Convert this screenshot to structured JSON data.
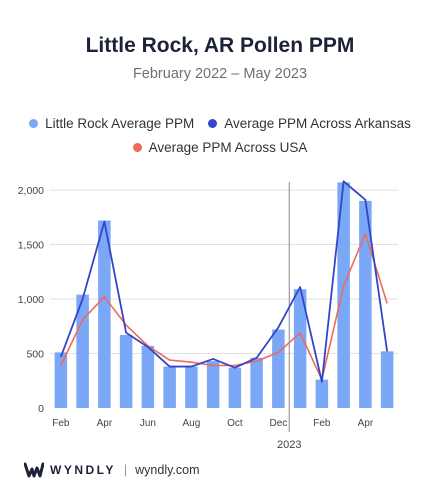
{
  "header": {
    "title": "Little Rock, AR Pollen PPM",
    "subtitle": "February 2022 – May 2023"
  },
  "legend": [
    {
      "label": "Little Rock Average PPM",
      "color": "#7aa8f7"
    },
    {
      "label": "Average PPM Across Arkansas",
      "color": "#3346c8"
    },
    {
      "label": "Average PPM Across USA",
      "color": "#ee6a5e"
    }
  ],
  "footer": {
    "brand": "WYNDLY",
    "separator": "|",
    "site": "wyndly.com",
    "logo_icon": "wyndly-w-icon"
  },
  "chart_data": {
    "type": "bar",
    "title": "Little Rock, AR Pollen PPM",
    "subtitle": "February 2022 – May 2023",
    "ylim": [
      0,
      2100
    ],
    "y_ticks": [
      0,
      500,
      1000,
      1500,
      2000
    ],
    "y_tick_labels": [
      "0",
      "500",
      "1,000",
      "1,500",
      "2,000"
    ],
    "x_tick_labels": [
      "Feb",
      "Apr",
      "Jun",
      "Aug",
      "Oct",
      "Dec",
      "Feb",
      "Apr"
    ],
    "x_tick_indices": [
      0,
      2,
      4,
      6,
      8,
      10,
      12,
      14
    ],
    "year_label": "2023",
    "year_divider_after_index": 10,
    "grid": true,
    "legend_position": "top",
    "categories": [
      "Feb 2022",
      "Mar 2022",
      "Apr 2022",
      "May 2022",
      "Jun 2022",
      "Jul 2022",
      "Aug 2022",
      "Sep 2022",
      "Oct 2022",
      "Nov 2022",
      "Dec 2022",
      "Jan 2023",
      "Feb 2023",
      "Mar 2023",
      "Apr 2023",
      "May 2023"
    ],
    "series": [
      {
        "name": "Little Rock Average PPM",
        "kind": "bar",
        "color": "#7aa8f7",
        "values": [
          510,
          1040,
          1720,
          670,
          570,
          380,
          380,
          430,
          370,
          460,
          720,
          1090,
          260,
          2070,
          1900,
          520
        ]
      },
      {
        "name": "Average PPM Across Arkansas",
        "kind": "line",
        "color": "#3346c8",
        "values": [
          470,
          1000,
          1710,
          690,
          560,
          380,
          380,
          450,
          370,
          460,
          740,
          1110,
          240,
          2080,
          1910,
          520
        ]
      },
      {
        "name": "Average PPM Across USA",
        "kind": "line",
        "color": "#ee6a5e",
        "values": [
          390,
          810,
          1020,
          760,
          570,
          440,
          420,
          390,
          390,
          430,
          510,
          690,
          260,
          1120,
          1600,
          960
        ]
      }
    ]
  }
}
